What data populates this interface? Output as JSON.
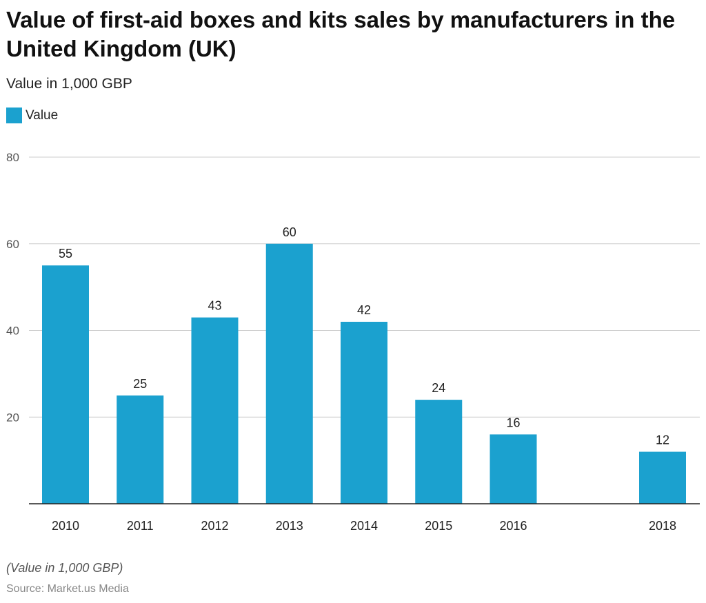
{
  "title": "Value of first-aid boxes and kits sales by manufacturers in the United Kingdom (UK)",
  "subtitle": "Value in 1,000 GBP",
  "note": "(Value in 1,000 GBP)",
  "source": "Source: Market.us Media",
  "colors": {
    "bar": "#1ba1cf",
    "grid": "#cccccc",
    "axis": "#222222"
  },
  "chart_data": {
    "type": "bar",
    "title": "Value of first-aid boxes and kits sales by manufacturers in the United Kingdom (UK)",
    "ylabel": "Value in 1,000 GBP",
    "legend": [
      {
        "name": "Value",
        "position": "top-left"
      }
    ],
    "categories": [
      "2010",
      "2011",
      "2012",
      "2013",
      "2014",
      "2015",
      "2016",
      "2018"
    ],
    "x": [
      2010,
      2011,
      2012,
      2013,
      2014,
      2015,
      2016,
      2018
    ],
    "series": [
      {
        "name": "Value",
        "values": [
          55,
          25,
          43,
          60,
          42,
          24,
          16,
          12
        ]
      }
    ],
    "xlim": [
      2010,
      2018
    ],
    "ylim": [
      0,
      80
    ],
    "yticks": [
      20,
      40,
      60,
      80
    ],
    "grid": true
  }
}
